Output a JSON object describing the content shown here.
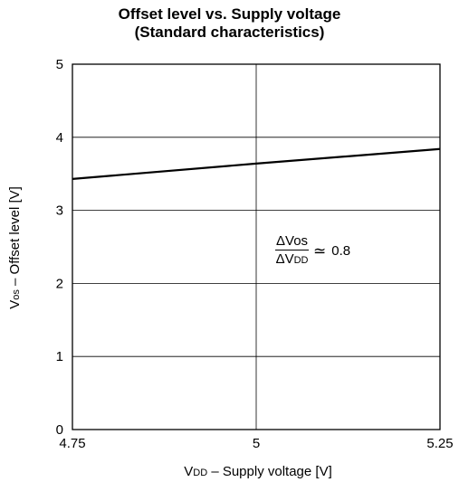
{
  "chart_data": {
    "type": "line",
    "title": "Offset level vs. Supply voltage",
    "subtitle": "(Standard characteristics)",
    "x_axis": {
      "label_main": "V",
      "label_sub": "DD",
      "label_rest": " – Supply voltage [V]",
      "lim": [
        4.75,
        5.25
      ],
      "ticks": [
        4.75,
        5,
        5.25
      ],
      "tick_labels": [
        "4.75",
        "5",
        "5.25"
      ]
    },
    "y_axis": {
      "label_main": "V",
      "label_sub": "os",
      "label_rest": " – Offset level [V]",
      "lim": [
        0,
        5
      ],
      "ticks": [
        0,
        1,
        2,
        3,
        4,
        5
      ],
      "tick_labels": [
        "0",
        "1",
        "2",
        "3",
        "4",
        "5"
      ]
    },
    "grid": true,
    "series": [
      {
        "x": [
          4.75,
          5.0,
          5.25
        ],
        "y": [
          3.43,
          3.64,
          3.84
        ]
      }
    ],
    "annotation": {
      "numerator_main": "ΔVos",
      "denominator_main": "ΔV",
      "denominator_sub": "DD",
      "relation": "≃",
      "value": "0.8"
    }
  }
}
